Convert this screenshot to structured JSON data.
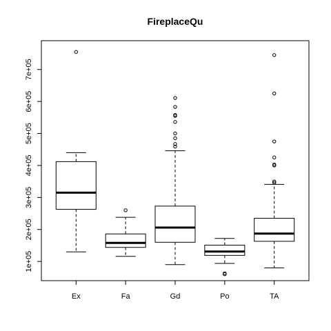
{
  "chart_data": {
    "type": "boxplot",
    "title": "FireplaceQu",
    "xlabel": "",
    "ylabel": "",
    "categories": [
      "Ex",
      "Fa",
      "Gd",
      "Po",
      "TA"
    ],
    "ylim": [
      40000,
      790000
    ],
    "yticks": [
      100000,
      200000,
      300000,
      400000,
      500000,
      600000,
      700000
    ],
    "ytick_labels": [
      "1e+05",
      "2e+05",
      "3e+05",
      "4e+05",
      "5e+05",
      "6e+05",
      "7e+05"
    ],
    "boxes": [
      {
        "category": "Ex",
        "whisker_low": 130000,
        "q1": 263000,
        "median": 315000,
        "q3": 412000,
        "whisker_high": 440000,
        "outliers": [
          755000
        ]
      },
      {
        "category": "Fa",
        "whisker_low": 116000,
        "q1": 144000,
        "median": 158000,
        "q3": 186000,
        "whisker_high": 238000,
        "outliers": [
          260000
        ]
      },
      {
        "category": "Gd",
        "whisker_low": 90000,
        "q1": 160000,
        "median": 206000,
        "q3": 273000,
        "whisker_high": 446000,
        "outliers": [
          459000,
          467000,
          485000,
          500000,
          536000,
          555000,
          558000,
          583000,
          611000
        ]
      },
      {
        "category": "Po",
        "whisker_low": 94000,
        "q1": 119000,
        "median": 131000,
        "q3": 151000,
        "whisker_high": 172000,
        "outliers": [
          60000,
          63000
        ]
      },
      {
        "category": "TA",
        "whisker_low": 80000,
        "q1": 163000,
        "median": 187000,
        "q3": 235000,
        "whisker_high": 341000,
        "outliers": [
          346000,
          350000,
          400000,
          403000,
          425000,
          475000,
          625000,
          745000
        ]
      }
    ],
    "grid": false,
    "legend": "none"
  }
}
